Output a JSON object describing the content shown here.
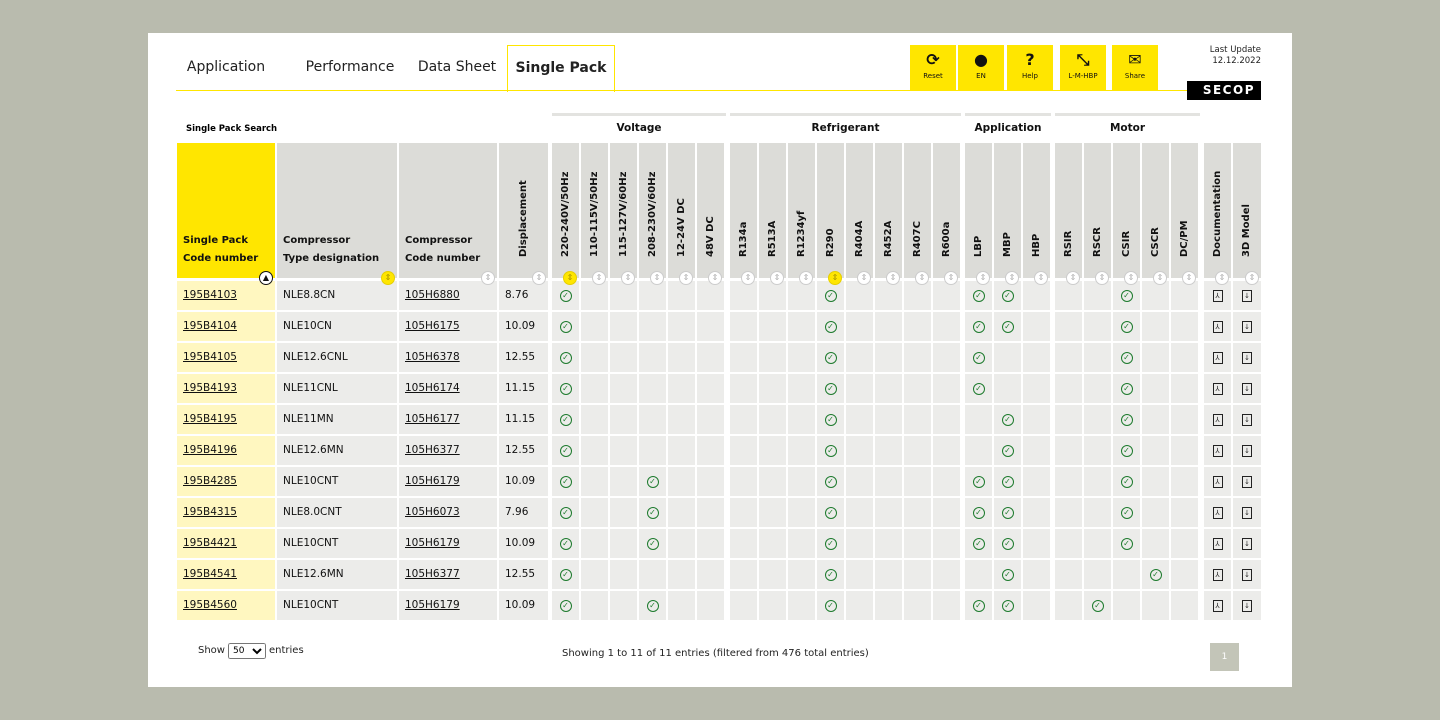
{
  "tabs": [
    {
      "label": "Application"
    },
    {
      "label": "Performance"
    },
    {
      "label": "Data Sheet"
    },
    {
      "label": "Single Pack",
      "active": true
    }
  ],
  "toolbar": [
    {
      "label": "Reset",
      "icon": "refresh-icon",
      "glyph": "⟳"
    },
    {
      "label": "EN",
      "icon": "globe-icon",
      "glyph": "●"
    },
    {
      "label": "Help",
      "icon": "question-icon",
      "glyph": "?"
    },
    {
      "label": "L-M-HBP",
      "icon": "compress-icon",
      "glyph": "⤡"
    },
    {
      "label": "Share",
      "icon": "envelope-icon",
      "glyph": "✉"
    }
  ],
  "last_update": {
    "label": "Last Update",
    "date": "12.12.2022"
  },
  "logo": "SECOP",
  "search_title": "Single Pack Search",
  "groups": [
    {
      "label": "Voltage"
    },
    {
      "label": "Refrigerant"
    },
    {
      "label": "Application"
    },
    {
      "label": "Motor"
    }
  ],
  "columns": [
    {
      "key": "code",
      "label1": "Single Pack",
      "label2": "Code number",
      "sort": "asc"
    },
    {
      "key": "type",
      "label1": "Compressor",
      "label2": "Type designation",
      "sort": "active"
    },
    {
      "key": "ccode",
      "label1": "Compressor",
      "label2": "Code number"
    },
    {
      "key": "disp",
      "label": "Displacement"
    },
    {
      "key": "v1",
      "label": "220-240V/50Hz",
      "sort": "active"
    },
    {
      "key": "v2",
      "label": "110-115V/50Hz"
    },
    {
      "key": "v3",
      "label": "115-127V/60Hz"
    },
    {
      "key": "v4",
      "label": "208-230V/60Hz"
    },
    {
      "key": "v5",
      "label": "12-24V DC"
    },
    {
      "key": "v6",
      "label": "48V DC"
    },
    {
      "key": "R134a",
      "label": "R134a"
    },
    {
      "key": "R513A",
      "label": "R513A"
    },
    {
      "key": "R1234yf",
      "label": "R1234yf"
    },
    {
      "key": "R290",
      "label": "R290",
      "sort": "active"
    },
    {
      "key": "R404A",
      "label": "R404A"
    },
    {
      "key": "R452A",
      "label": "R452A"
    },
    {
      "key": "R407C",
      "label": "R407C"
    },
    {
      "key": "R600a",
      "label": "R600a"
    },
    {
      "key": "LBP",
      "label": "LBP"
    },
    {
      "key": "MBP",
      "label": "MBP"
    },
    {
      "key": "HBP",
      "label": "HBP"
    },
    {
      "key": "RSIR",
      "label": "RSIR"
    },
    {
      "key": "RSCR",
      "label": "RSCR"
    },
    {
      "key": "CSIR",
      "label": "CSIR"
    },
    {
      "key": "CSCR",
      "label": "CSCR"
    },
    {
      "key": "DCPM",
      "label": "DC/PM"
    },
    {
      "key": "doc",
      "label": "Documentation"
    },
    {
      "key": "model",
      "label": "3D Model"
    }
  ],
  "rows": [
    {
      "code": "195B4103",
      "type": "NLE8.8CN",
      "ccode": "105H6880",
      "disp": "8.76",
      "checks": [
        "v1",
        "R290",
        "LBP",
        "MBP",
        "CSIR"
      ]
    },
    {
      "code": "195B4104",
      "type": "NLE10CN",
      "ccode": "105H6175",
      "disp": "10.09",
      "checks": [
        "v1",
        "R290",
        "LBP",
        "MBP",
        "CSIR"
      ]
    },
    {
      "code": "195B4105",
      "type": "NLE12.6CNL",
      "ccode": "105H6378",
      "disp": "12.55",
      "checks": [
        "v1",
        "R290",
        "LBP",
        "CSIR"
      ]
    },
    {
      "code": "195B4193",
      "type": "NLE11CNL",
      "ccode": "105H6174",
      "disp": "11.15",
      "checks": [
        "v1",
        "R290",
        "LBP",
        "CSIR"
      ]
    },
    {
      "code": "195B4195",
      "type": "NLE11MN",
      "ccode": "105H6177",
      "disp": "11.15",
      "checks": [
        "v1",
        "R290",
        "MBP",
        "CSIR"
      ]
    },
    {
      "code": "195B4196",
      "type": "NLE12.6MN",
      "ccode": "105H6377",
      "disp": "12.55",
      "checks": [
        "v1",
        "R290",
        "MBP",
        "CSIR"
      ]
    },
    {
      "code": "195B4285",
      "type": "NLE10CNT",
      "ccode": "105H6179",
      "disp": "10.09",
      "checks": [
        "v1",
        "v4",
        "R290",
        "LBP",
        "MBP",
        "CSIR"
      ]
    },
    {
      "code": "195B4315",
      "type": "NLE8.0CNT",
      "ccode": "105H6073",
      "disp": "7.96",
      "checks": [
        "v1",
        "v4",
        "R290",
        "LBP",
        "MBP",
        "CSIR"
      ]
    },
    {
      "code": "195B4421",
      "type": "NLE10CNT",
      "ccode": "105H6179",
      "disp": "10.09",
      "checks": [
        "v1",
        "v4",
        "R290",
        "LBP",
        "MBP",
        "CSIR"
      ]
    },
    {
      "code": "195B4541",
      "type": "NLE12.6MN",
      "ccode": "105H6377",
      "disp": "12.55",
      "checks": [
        "v1",
        "R290",
        "MBP",
        "CSCR"
      ]
    },
    {
      "code": "195B4560",
      "type": "NLE10CNT",
      "ccode": "105H6179",
      "disp": "10.09",
      "checks": [
        "v1",
        "v4",
        "R290",
        "LBP",
        "MBP",
        "RSCR"
      ]
    }
  ],
  "footer": {
    "show": "Show",
    "entries": "entries",
    "page_size": "50",
    "info": "Showing 1 to 11 of 11 entries (filtered from 476 total entries)",
    "page": "1"
  },
  "colors": {
    "accent": "#ffe600",
    "check": "#1e7b2e",
    "header": "#dcdcd8"
  }
}
